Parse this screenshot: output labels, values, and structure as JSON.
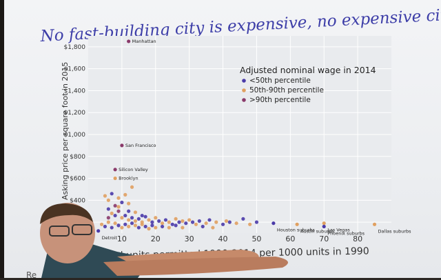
{
  "slide": {
    "title": "No fast-building city is expensive, no expensive city builds",
    "ylabel": "Asking price per square foot in 2015",
    "xlabel": "Annual units permitted 1990-2014 per 1000 units in 1990",
    "corner_text": "Re"
  },
  "chart_data": {
    "type": "scatter",
    "title": "",
    "ylabel": "Asking price per square foot in 2015",
    "xlabel": "Annual units permitted 1990-2014 per 1000 units in 1990",
    "xlim": [
      0,
      90
    ],
    "ylim": [
      100,
      1900
    ],
    "x_ticks": [
      10,
      20,
      30,
      40,
      50,
      60,
      70,
      80
    ],
    "y_ticks": [
      {
        "value": 200,
        "label": "$200"
      },
      {
        "value": 400,
        "label": "$400"
      },
      {
        "value": 600,
        "label": "$600"
      },
      {
        "value": 800,
        "label": "$800"
      },
      {
        "value": 1000,
        "label": "$1,000"
      },
      {
        "value": 1200,
        "label": "$1,200"
      },
      {
        "value": 1400,
        "label": "$1,400"
      },
      {
        "value": 1600,
        "label": "$1,600"
      },
      {
        "value": 1800,
        "label": "$1,800"
      }
    ],
    "legend": {
      "title": "Adjusted nominal wage in 2014",
      "placement": "top-right",
      "entries": [
        {
          "name": "<50th percentile",
          "color": "#4a3aa8"
        },
        {
          "name": "50th-90th percentile",
          "color": "#e0a060"
        },
        {
          "name": ">90th percentile",
          "color": "#8a3a6a"
        }
      ]
    },
    "labeled_points": [
      {
        "label": "Manhattan",
        "x": 12,
        "y": 1850,
        "group": 2
      },
      {
        "label": "San Francisco",
        "x": 10,
        "y": 900,
        "group": 2
      },
      {
        "label": "Silicon Valley",
        "x": 8,
        "y": 680,
        "group": 2
      },
      {
        "label": "Brooklyn",
        "x": 8,
        "y": 600,
        "group": 1
      },
      {
        "label": "Detroit",
        "x": 3,
        "y": 120,
        "group": 0
      },
      {
        "label": "Houston suburbs",
        "x": 55,
        "y": 190,
        "group": 0
      },
      {
        "label": "Austin suburbs",
        "x": 62,
        "y": 180,
        "group": 1
      },
      {
        "label": "Las Vegas",
        "x": 70,
        "y": 190,
        "group": 1
      },
      {
        "label": "Phoenix suburbs",
        "x": 70,
        "y": 160,
        "group": 0
      },
      {
        "label": "Dallas suburbs",
        "x": 85,
        "y": 180,
        "group": 1
      }
    ],
    "points": [
      {
        "x": 5,
        "y": 440,
        "g": 1
      },
      {
        "x": 6,
        "y": 400,
        "g": 1
      },
      {
        "x": 7,
        "y": 460,
        "g": 0
      },
      {
        "x": 8,
        "y": 350,
        "g": 2
      },
      {
        "x": 9,
        "y": 420,
        "g": 1
      },
      {
        "x": 10,
        "y": 380,
        "g": 0
      },
      {
        "x": 11,
        "y": 450,
        "g": 1
      },
      {
        "x": 12,
        "y": 300,
        "g": 0
      },
      {
        "x": 13,
        "y": 520,
        "g": 1
      },
      {
        "x": 6,
        "y": 320,
        "g": 0
      },
      {
        "x": 7,
        "y": 280,
        "g": 1
      },
      {
        "x": 8,
        "y": 260,
        "g": 0
      },
      {
        "x": 9,
        "y": 300,
        "g": 2
      },
      {
        "x": 10,
        "y": 240,
        "g": 1
      },
      {
        "x": 11,
        "y": 260,
        "g": 0
      },
      {
        "x": 12,
        "y": 220,
        "g": 1
      },
      {
        "x": 13,
        "y": 240,
        "g": 0
      },
      {
        "x": 14,
        "y": 210,
        "g": 1
      },
      {
        "x": 15,
        "y": 230,
        "g": 0
      },
      {
        "x": 16,
        "y": 200,
        "g": 1
      },
      {
        "x": 17,
        "y": 250,
        "g": 0
      },
      {
        "x": 18,
        "y": 220,
        "g": 1
      },
      {
        "x": 19,
        "y": 200,
        "g": 0
      },
      {
        "x": 20,
        "y": 240,
        "g": 1
      },
      {
        "x": 21,
        "y": 210,
        "g": 0
      },
      {
        "x": 22,
        "y": 190,
        "g": 1
      },
      {
        "x": 23,
        "y": 220,
        "g": 0
      },
      {
        "x": 24,
        "y": 200,
        "g": 1
      },
      {
        "x": 25,
        "y": 180,
        "g": 0
      },
      {
        "x": 26,
        "y": 230,
        "g": 1
      },
      {
        "x": 27,
        "y": 200,
        "g": 0
      },
      {
        "x": 28,
        "y": 210,
        "g": 1
      },
      {
        "x": 29,
        "y": 190,
        "g": 0
      },
      {
        "x": 30,
        "y": 220,
        "g": 1
      },
      {
        "x": 31,
        "y": 200,
        "g": 0
      },
      {
        "x": 32,
        "y": 180,
        "g": 1
      },
      {
        "x": 33,
        "y": 210,
        "g": 0
      },
      {
        "x": 35,
        "y": 190,
        "g": 1
      },
      {
        "x": 36,
        "y": 220,
        "g": 0
      },
      {
        "x": 38,
        "y": 200,
        "g": 1
      },
      {
        "x": 40,
        "y": 180,
        "g": 0
      },
      {
        "x": 41,
        "y": 210,
        "g": 1
      },
      {
        "x": 42,
        "y": 200,
        "g": 0
      },
      {
        "x": 44,
        "y": 190,
        "g": 1
      },
      {
        "x": 46,
        "y": 230,
        "g": 0
      },
      {
        "x": 48,
        "y": 180,
        "g": 1
      },
      {
        "x": 50,
        "y": 200,
        "g": 0
      },
      {
        "x": 4,
        "y": 180,
        "g": 1
      },
      {
        "x": 5,
        "y": 160,
        "g": 0
      },
      {
        "x": 6,
        "y": 200,
        "g": 1
      },
      {
        "x": 7,
        "y": 150,
        "g": 0
      },
      {
        "x": 8,
        "y": 190,
        "g": 1
      },
      {
        "x": 9,
        "y": 170,
        "g": 0
      },
      {
        "x": 10,
        "y": 150,
        "g": 1
      },
      {
        "x": 11,
        "y": 180,
        "g": 0
      },
      {
        "x": 12,
        "y": 160,
        "g": 1
      },
      {
        "x": 13,
        "y": 190,
        "g": 0
      },
      {
        "x": 14,
        "y": 170,
        "g": 1
      },
      {
        "x": 15,
        "y": 150,
        "g": 0
      },
      {
        "x": 16,
        "y": 180,
        "g": 1
      },
      {
        "x": 17,
        "y": 160,
        "g": 0
      },
      {
        "x": 18,
        "y": 140,
        "g": 1
      },
      {
        "x": 19,
        "y": 170,
        "g": 0
      },
      {
        "x": 20,
        "y": 150,
        "g": 1
      },
      {
        "x": 22,
        "y": 160,
        "g": 0
      },
      {
        "x": 24,
        "y": 150,
        "g": 1
      },
      {
        "x": 26,
        "y": 170,
        "g": 0
      },
      {
        "x": 28,
        "y": 150,
        "g": 1
      },
      {
        "x": 34,
        "y": 160,
        "g": 0
      },
      {
        "x": 37,
        "y": 150,
        "g": 1
      },
      {
        "x": 6,
        "y": 240,
        "g": 2
      },
      {
        "x": 9,
        "y": 340,
        "g": 1
      },
      {
        "x": 14,
        "y": 290,
        "g": 1
      },
      {
        "x": 16,
        "y": 260,
        "g": 0
      },
      {
        "x": 12,
        "y": 370,
        "g": 1
      }
    ]
  }
}
